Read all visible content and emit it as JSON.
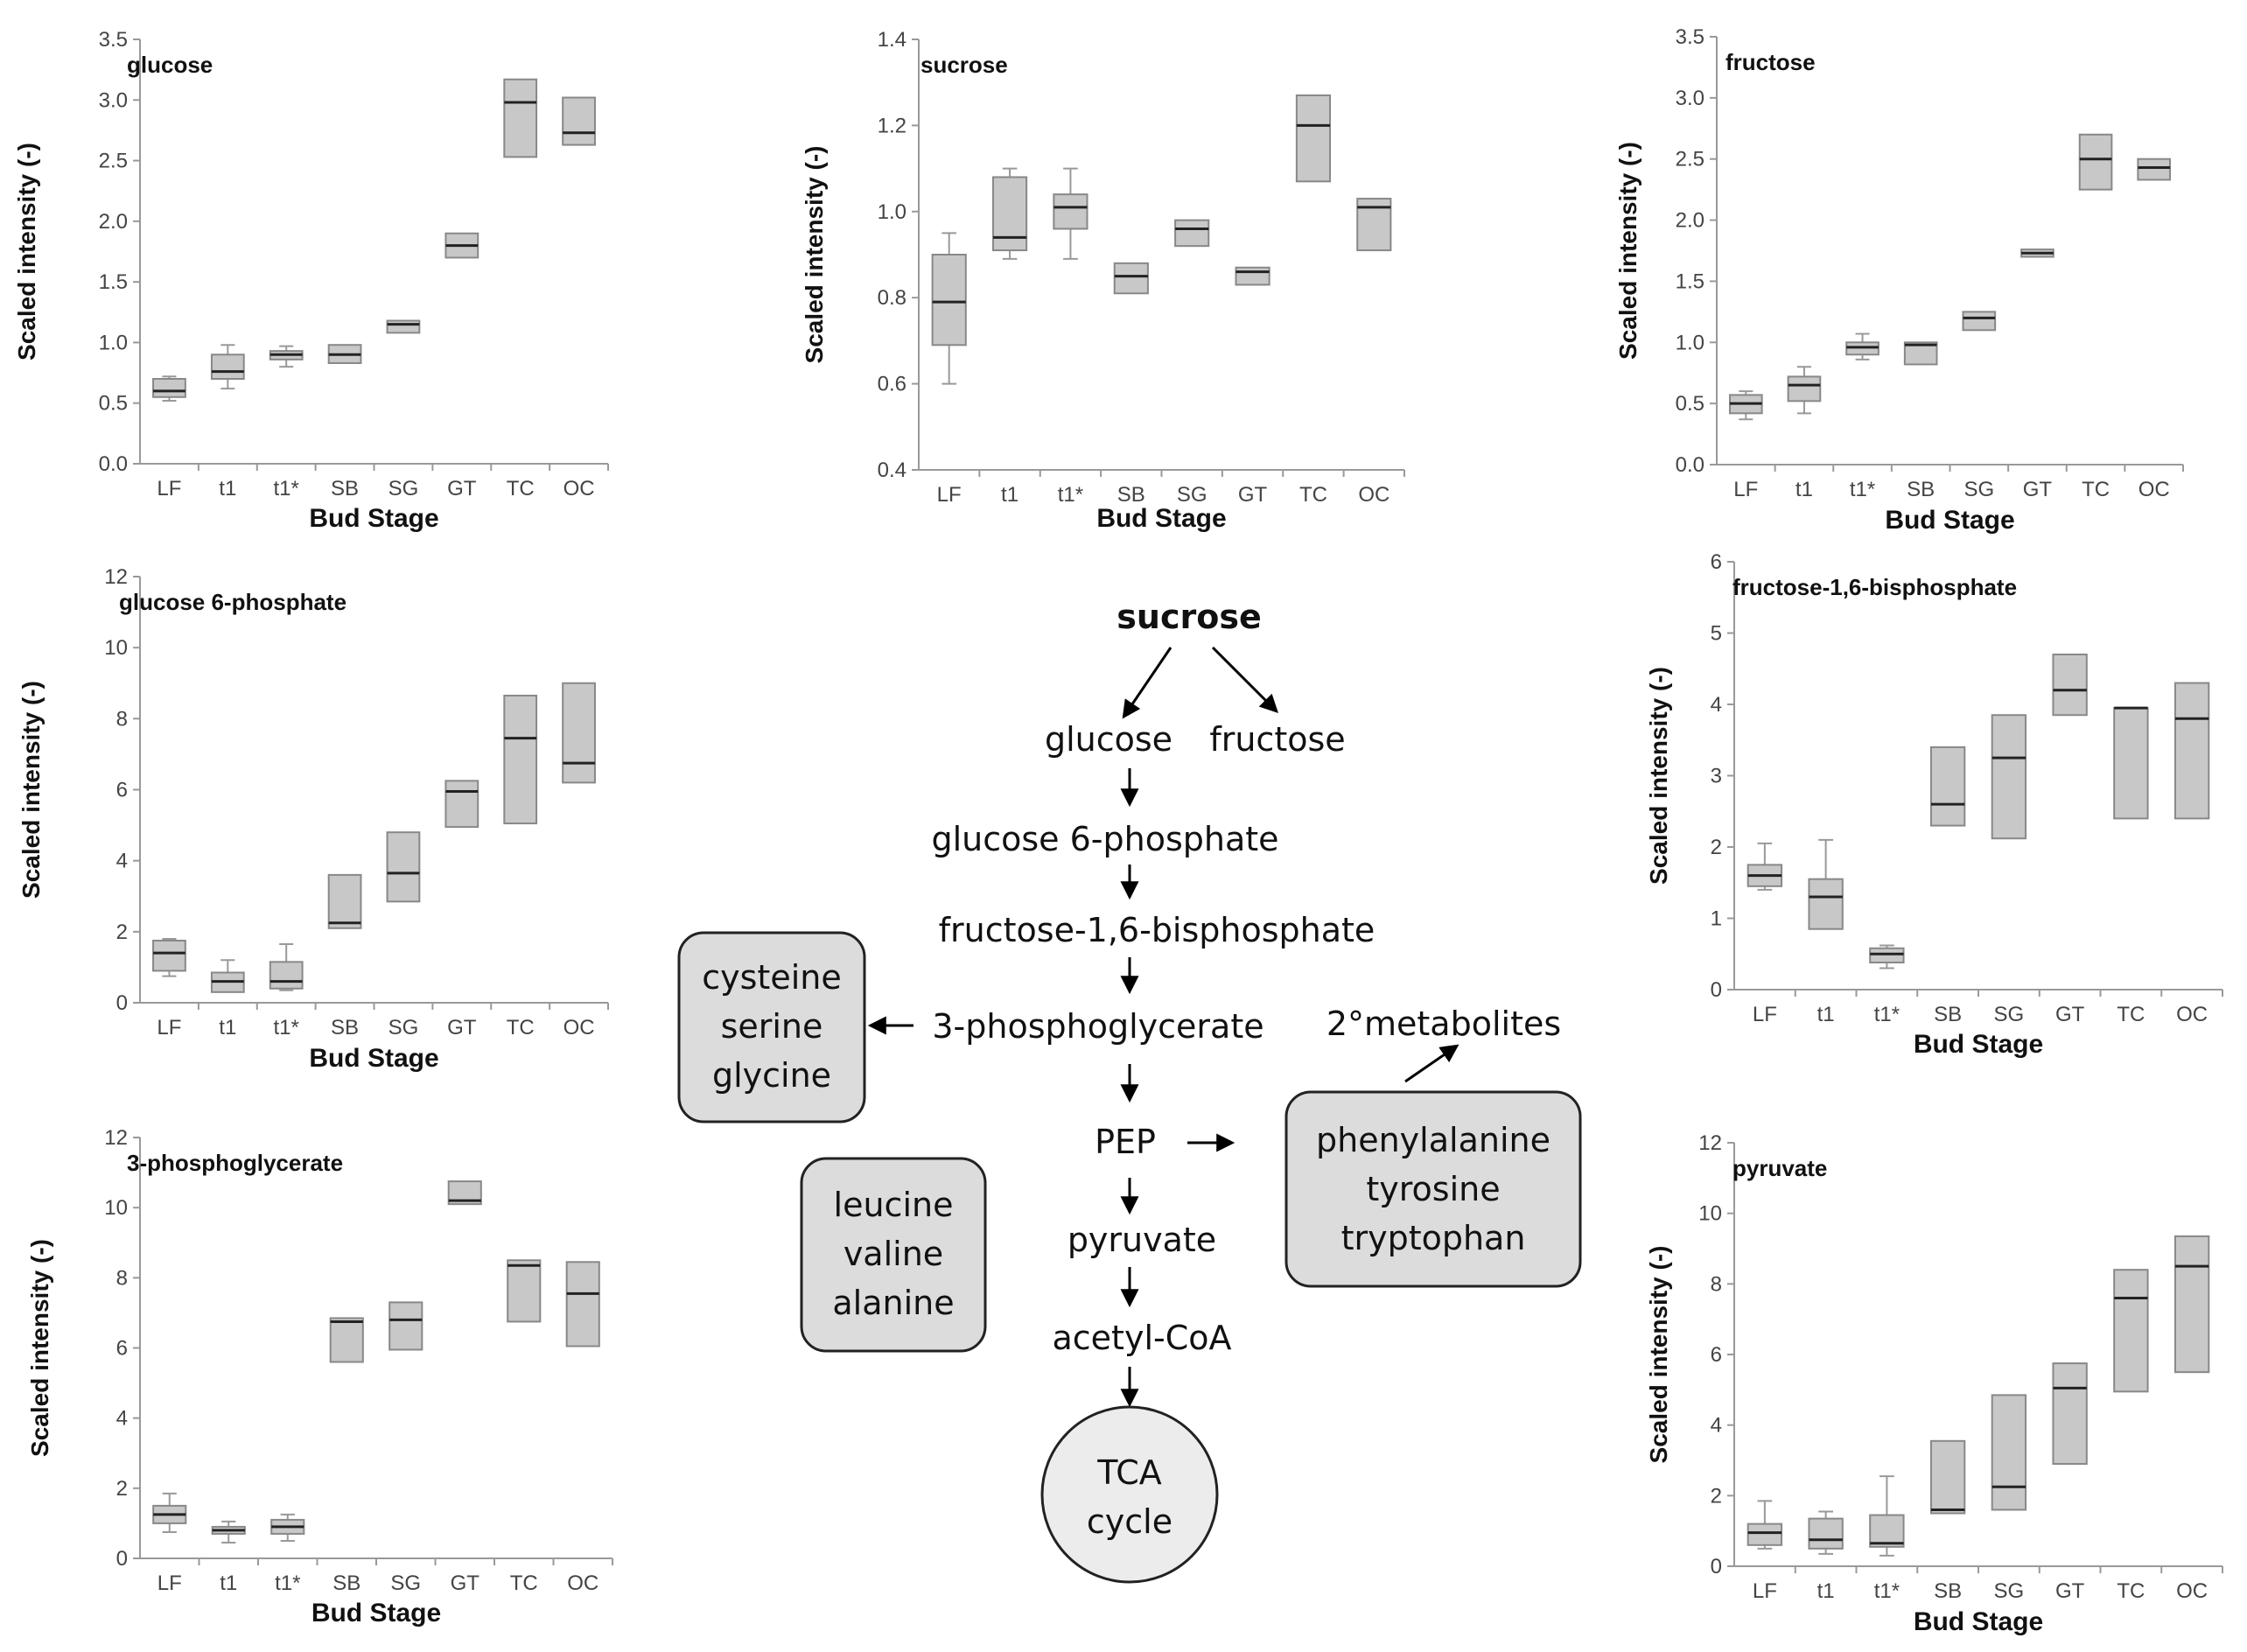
{
  "chart_data": [
    {
      "type": "box",
      "title": "glucose",
      "xlabel": "Bud Stage",
      "ylabel": "Scaled intensity (-)",
      "ylim": [
        0,
        3.5
      ],
      "yticks": [
        "0.0",
        "0.5",
        "1.0",
        "1.5",
        "2.0",
        "2.5",
        "3.0",
        "3.5"
      ],
      "categories": [
        "LF",
        "t1",
        "t1*",
        "SB",
        "SG",
        "GT",
        "TC",
        "OC"
      ],
      "boxes": [
        {
          "min": 0.52,
          "q1": 0.55,
          "median": 0.6,
          "q3": 0.7,
          "max": 0.72
        },
        {
          "min": 0.62,
          "q1": 0.7,
          "median": 0.76,
          "q3": 0.9,
          "max": 0.98
        },
        {
          "min": 0.8,
          "q1": 0.86,
          "median": 0.9,
          "q3": 0.93,
          "max": 0.97
        },
        {
          "min": 0.83,
          "q1": 0.83,
          "median": 0.9,
          "q3": 0.98,
          "max": 0.98
        },
        {
          "min": 1.08,
          "q1": 1.08,
          "median": 1.15,
          "q3": 1.18,
          "max": 1.18
        },
        {
          "min": 1.7,
          "q1": 1.7,
          "median": 1.8,
          "q3": 1.9,
          "max": 1.9
        },
        {
          "min": 2.53,
          "q1": 2.53,
          "median": 2.98,
          "q3": 3.17,
          "max": 3.17
        },
        {
          "min": 2.63,
          "q1": 2.63,
          "median": 2.73,
          "q3": 3.02,
          "max": 3.02
        }
      ]
    },
    {
      "type": "box",
      "title": "sucrose",
      "xlabel": "Bud Stage",
      "ylabel": "Scaled intensity (-)",
      "ylim": [
        0.4,
        1.4
      ],
      "yticks": [
        "0.4",
        "0.6",
        "0.8",
        "1.0",
        "1.2",
        "1.4"
      ],
      "categories": [
        "LF",
        "t1",
        "t1*",
        "SB",
        "SG",
        "GT",
        "TC",
        "OC"
      ],
      "boxes": [
        {
          "min": 0.6,
          "q1": 0.69,
          "median": 0.79,
          "q3": 0.9,
          "max": 0.95
        },
        {
          "min": 0.89,
          "q1": 0.91,
          "median": 0.94,
          "q3": 1.08,
          "max": 1.1
        },
        {
          "min": 0.89,
          "q1": 0.96,
          "median": 1.01,
          "q3": 1.04,
          "max": 1.1
        },
        {
          "min": 0.81,
          "q1": 0.81,
          "median": 0.85,
          "q3": 0.88,
          "max": 0.88
        },
        {
          "min": 0.92,
          "q1": 0.92,
          "median": 0.96,
          "q3": 0.98,
          "max": 0.98
        },
        {
          "min": 0.83,
          "q1": 0.83,
          "median": 0.86,
          "q3": 0.87,
          "max": 0.87
        },
        {
          "min": 1.07,
          "q1": 1.07,
          "median": 1.2,
          "q3": 1.27,
          "max": 1.27
        },
        {
          "min": 0.91,
          "q1": 0.91,
          "median": 1.01,
          "q3": 1.03,
          "max": 1.03
        }
      ]
    },
    {
      "type": "box",
      "title": "fructose",
      "xlabel": "Bud Stage",
      "ylabel": "Scaled intensity (-)",
      "ylim": [
        0,
        3.5
      ],
      "yticks": [
        "0.0",
        "0.5",
        "1.0",
        "1.5",
        "2.0",
        "2.5",
        "3.0",
        "3.5"
      ],
      "categories": [
        "LF",
        "t1",
        "t1*",
        "SB",
        "SG",
        "GT",
        "TC",
        "OC"
      ],
      "boxes": [
        {
          "min": 0.37,
          "q1": 0.42,
          "median": 0.5,
          "q3": 0.57,
          "max": 0.6
        },
        {
          "min": 0.42,
          "q1": 0.52,
          "median": 0.65,
          "q3": 0.72,
          "max": 0.8
        },
        {
          "min": 0.86,
          "q1": 0.9,
          "median": 0.96,
          "q3": 1.0,
          "max": 1.07
        },
        {
          "min": 0.82,
          "q1": 0.82,
          "median": 0.98,
          "q3": 1.0,
          "max": 1.0
        },
        {
          "min": 1.1,
          "q1": 1.1,
          "median": 1.2,
          "q3": 1.25,
          "max": 1.25
        },
        {
          "min": 1.7,
          "q1": 1.7,
          "median": 1.73,
          "q3": 1.76,
          "max": 1.76
        },
        {
          "min": 2.25,
          "q1": 2.25,
          "median": 2.5,
          "q3": 2.7,
          "max": 2.7
        },
        {
          "min": 2.33,
          "q1": 2.33,
          "median": 2.43,
          "q3": 2.5,
          "max": 2.5
        }
      ]
    },
    {
      "type": "box",
      "title": "glucose 6-phosphate",
      "xlabel": "Bud Stage",
      "ylabel": "Scaled intensity (-)",
      "ylim": [
        0,
        12
      ],
      "yticks": [
        "0",
        "2",
        "4",
        "6",
        "8",
        "10",
        "12"
      ],
      "categories": [
        "LF",
        "t1",
        "t1*",
        "SB",
        "SG",
        "GT",
        "TC",
        "OC"
      ],
      "boxes": [
        {
          "min": 0.75,
          "q1": 0.9,
          "median": 1.4,
          "q3": 1.75,
          "max": 1.8
        },
        {
          "min": 0.3,
          "q1": 0.3,
          "median": 0.6,
          "q3": 0.85,
          "max": 1.2
        },
        {
          "min": 0.35,
          "q1": 0.4,
          "median": 0.6,
          "q3": 1.15,
          "max": 1.65
        },
        {
          "min": 2.1,
          "q1": 2.1,
          "median": 2.25,
          "q3": 3.6,
          "max": 3.6
        },
        {
          "min": 2.85,
          "q1": 2.85,
          "median": 3.65,
          "q3": 4.8,
          "max": 4.8
        },
        {
          "min": 4.95,
          "q1": 4.95,
          "median": 5.95,
          "q3": 6.25,
          "max": 6.25
        },
        {
          "min": 5.05,
          "q1": 5.05,
          "median": 7.45,
          "q3": 8.65,
          "max": 8.65
        },
        {
          "min": 6.2,
          "q1": 6.2,
          "median": 6.75,
          "q3": 9.0,
          "max": 9.0
        }
      ]
    },
    {
      "type": "box",
      "title": "fructose-1,6-bisphosphate",
      "xlabel": "Bud Stage",
      "ylabel": "Scaled intensity (-)",
      "ylim": [
        0,
        6
      ],
      "yticks": [
        "0",
        "1",
        "2",
        "3",
        "4",
        "5",
        "6"
      ],
      "categories": [
        "LF",
        "t1",
        "t1*",
        "SB",
        "SG",
        "GT",
        "TC",
        "OC"
      ],
      "boxes": [
        {
          "min": 1.4,
          "q1": 1.45,
          "median": 1.6,
          "q3": 1.75,
          "max": 2.05
        },
        {
          "min": 0.85,
          "q1": 0.85,
          "median": 1.3,
          "q3": 1.55,
          "max": 2.1
        },
        {
          "min": 0.3,
          "q1": 0.38,
          "median": 0.5,
          "q3": 0.58,
          "max": 0.62
        },
        {
          "min": 2.3,
          "q1": 2.3,
          "median": 2.6,
          "q3": 3.4,
          "max": 3.4
        },
        {
          "min": 2.12,
          "q1": 2.12,
          "median": 3.25,
          "q3": 3.85,
          "max": 3.85
        },
        {
          "min": 3.85,
          "q1": 3.85,
          "median": 4.2,
          "q3": 4.7,
          "max": 4.7
        },
        {
          "min": 2.4,
          "q1": 2.4,
          "median": 3.95,
          "q3": 3.95,
          "max": 3.95
        },
        {
          "min": 2.4,
          "q1": 2.4,
          "median": 3.8,
          "q3": 4.3,
          "max": 4.3
        }
      ]
    },
    {
      "type": "box",
      "title": "3-phosphoglycerate",
      "xlabel": "Bud Stage",
      "ylabel": "Scaled intensity (-)",
      "ylim": [
        0,
        12
      ],
      "yticks": [
        "0",
        "2",
        "4",
        "6",
        "8",
        "10",
        "12"
      ],
      "categories": [
        "LF",
        "t1",
        "t1*",
        "SB",
        "SG",
        "GT",
        "TC",
        "OC"
      ],
      "boxes": [
        {
          "min": 0.75,
          "q1": 1.0,
          "median": 1.25,
          "q3": 1.5,
          "max": 1.85
        },
        {
          "min": 0.45,
          "q1": 0.7,
          "median": 0.8,
          "q3": 0.9,
          "max": 1.05
        },
        {
          "min": 0.5,
          "q1": 0.7,
          "median": 0.9,
          "q3": 1.1,
          "max": 1.25
        },
        {
          "min": 5.6,
          "q1": 5.6,
          "median": 6.75,
          "q3": 6.85,
          "max": 6.85
        },
        {
          "min": 5.95,
          "q1": 5.95,
          "median": 6.8,
          "q3": 7.3,
          "max": 7.3
        },
        {
          "min": 10.1,
          "q1": 10.1,
          "median": 10.2,
          "q3": 10.75,
          "max": 10.75
        },
        {
          "min": 6.75,
          "q1": 6.75,
          "median": 8.35,
          "q3": 8.5,
          "max": 8.5
        },
        {
          "min": 6.05,
          "q1": 6.05,
          "median": 7.55,
          "q3": 8.45,
          "max": 8.45
        }
      ]
    },
    {
      "type": "box",
      "title": "pyruvate",
      "xlabel": "Bud Stage",
      "ylabel": "Scaled intensity (-)",
      "ylim": [
        0,
        12
      ],
      "yticks": [
        "0",
        "2",
        "4",
        "6",
        "8",
        "10",
        "12"
      ],
      "categories": [
        "LF",
        "t1",
        "t1*",
        "SB",
        "SG",
        "GT",
        "TC",
        "OC"
      ],
      "boxes": [
        {
          "min": 0.5,
          "q1": 0.6,
          "median": 0.95,
          "q3": 1.2,
          "max": 1.85
        },
        {
          "min": 0.35,
          "q1": 0.5,
          "median": 0.75,
          "q3": 1.35,
          "max": 1.55
        },
        {
          "min": 0.3,
          "q1": 0.55,
          "median": 0.65,
          "q3": 1.45,
          "max": 2.55
        },
        {
          "min": 1.5,
          "q1": 1.5,
          "median": 1.6,
          "q3": 3.55,
          "max": 3.55
        },
        {
          "min": 1.6,
          "q1": 1.6,
          "median": 2.25,
          "q3": 4.85,
          "max": 4.85
        },
        {
          "min": 2.9,
          "q1": 2.9,
          "median": 5.05,
          "q3": 5.75,
          "max": 5.75
        },
        {
          "min": 4.95,
          "q1": 4.95,
          "median": 7.6,
          "q3": 8.4,
          "max": 8.4
        },
        {
          "min": 5.5,
          "q1": 5.5,
          "median": 8.5,
          "q3": 9.35,
          "max": 9.35
        }
      ]
    }
  ],
  "pathway": {
    "sucrose": "sucrose",
    "glucose": "glucose",
    "fructose": "fructose",
    "glucose6p": "glucose 6-phosphate",
    "fbp": "fructose-1,6-bisphosphate",
    "pga": "3-phosphoglycerate",
    "pep": "PEP",
    "pyruvate": "pyruvate",
    "acetylcoa": "acetyl-CoA",
    "secondary": "2°metabolites",
    "tca_line1": "TCA",
    "tca_line2": "cycle",
    "box_ser": [
      "cysteine",
      "serine",
      "glycine"
    ],
    "box_leu": [
      "leucine",
      "valine",
      "alanine"
    ],
    "box_phe": [
      "phenylalanine",
      "tyrosine",
      "tryptophan"
    ]
  }
}
